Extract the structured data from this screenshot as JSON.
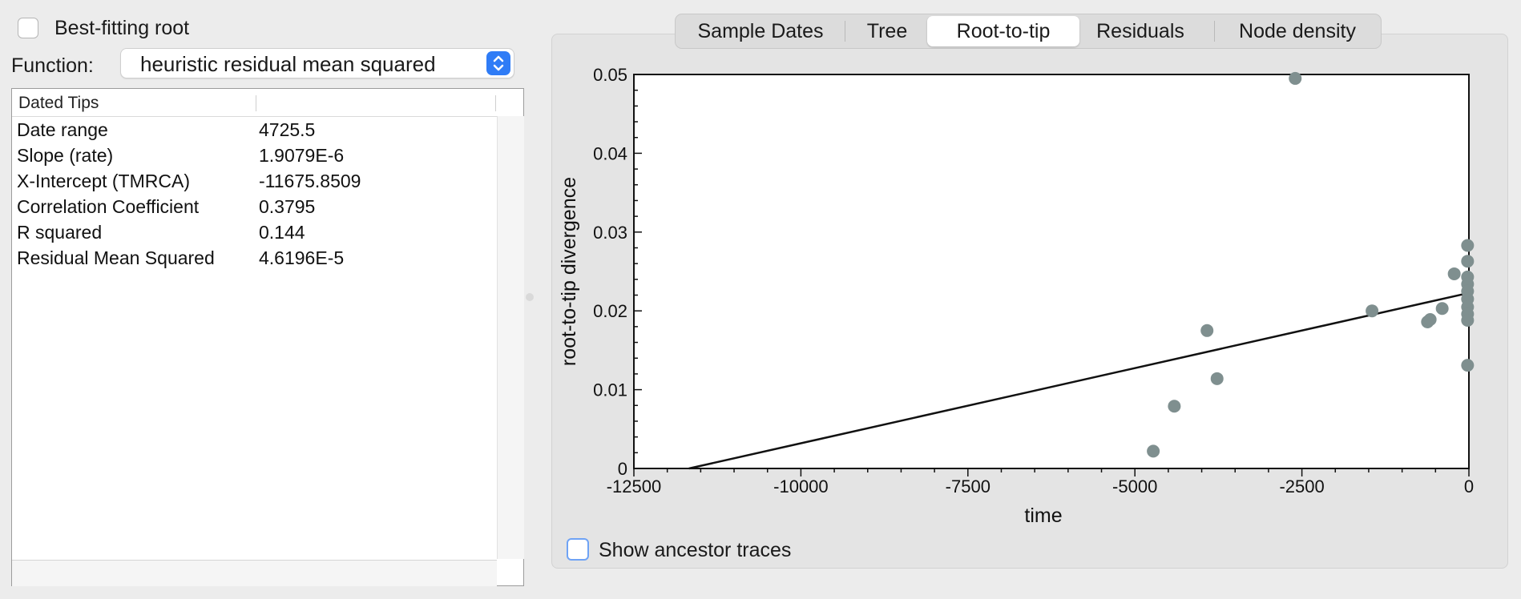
{
  "best_fitting_root": {
    "label": "Best-fitting root",
    "checked": false
  },
  "function": {
    "label": "Function:",
    "value": "heuristic residual mean squared"
  },
  "table": {
    "header": "Dated Tips",
    "rows": [
      {
        "key": "Date range",
        "value": "4725.5"
      },
      {
        "key": "Slope (rate)",
        "value": "1.9079E-6"
      },
      {
        "key": "X-Intercept (TMRCA)",
        "value": "-11675.8509"
      },
      {
        "key": "Correlation Coefficient",
        "value": "0.3795"
      },
      {
        "key": "R squared",
        "value": "0.144"
      },
      {
        "key": "Residual Mean Squared",
        "value": "4.6196E-5"
      }
    ]
  },
  "tabs": [
    {
      "label": "Sample Dates",
      "active": false
    },
    {
      "label": "Tree",
      "active": false
    },
    {
      "label": "Root-to-tip",
      "active": true
    },
    {
      "label": "Residuals",
      "active": false
    },
    {
      "label": "Node density",
      "active": false
    }
  ],
  "show_ancestor_traces": {
    "label": "Show ancestor traces",
    "checked": false
  },
  "colors": {
    "point": "#7f8f8f",
    "accent": "#2f7cf6",
    "line": "#111111"
  },
  "chart_data": {
    "type": "scatter",
    "xlabel": "time",
    "ylabel": "root-to-tip divergence",
    "xlim": [
      -12500,
      0
    ],
    "ylim": [
      0,
      0.05
    ],
    "xticks": [
      -12500,
      -10000,
      -7500,
      -5000,
      -2500,
      0
    ],
    "xtick_labels": [
      "-12500",
      "-10000",
      "-7500",
      "-5000",
      "-2500",
      "0"
    ],
    "yticks": [
      0,
      0.01,
      0.02,
      0.03,
      0.04,
      0.05
    ],
    "ytick_labels": [
      "0",
      "0.01",
      "0.02",
      "0.03",
      "0.04",
      "0.05"
    ],
    "grid": false,
    "points": [
      {
        "x": -2600,
        "y": 0.0495
      },
      {
        "x": -1450,
        "y": 0.02
      },
      {
        "x": -3920,
        "y": 0.0175
      },
      {
        "x": -4410,
        "y": 0.0079
      },
      {
        "x": -3770,
        "y": 0.0114
      },
      {
        "x": -4725,
        "y": 0.0022
      },
      {
        "x": -620,
        "y": 0.0186
      },
      {
        "x": -580,
        "y": 0.0189
      },
      {
        "x": -400,
        "y": 0.0203
      },
      {
        "x": -220,
        "y": 0.0247
      },
      {
        "x": -20,
        "y": 0.0283
      },
      {
        "x": -20,
        "y": 0.0263
      },
      {
        "x": -20,
        "y": 0.0243
      },
      {
        "x": -20,
        "y": 0.0234
      },
      {
        "x": -20,
        "y": 0.0225
      },
      {
        "x": -20,
        "y": 0.0215
      },
      {
        "x": -20,
        "y": 0.0205
      },
      {
        "x": -20,
        "y": 0.0196
      },
      {
        "x": -20,
        "y": 0.0188
      },
      {
        "x": -20,
        "y": 0.0131
      }
    ],
    "regression": {
      "slope": 1.9079e-06,
      "x_intercept": -11675.8509
    }
  }
}
